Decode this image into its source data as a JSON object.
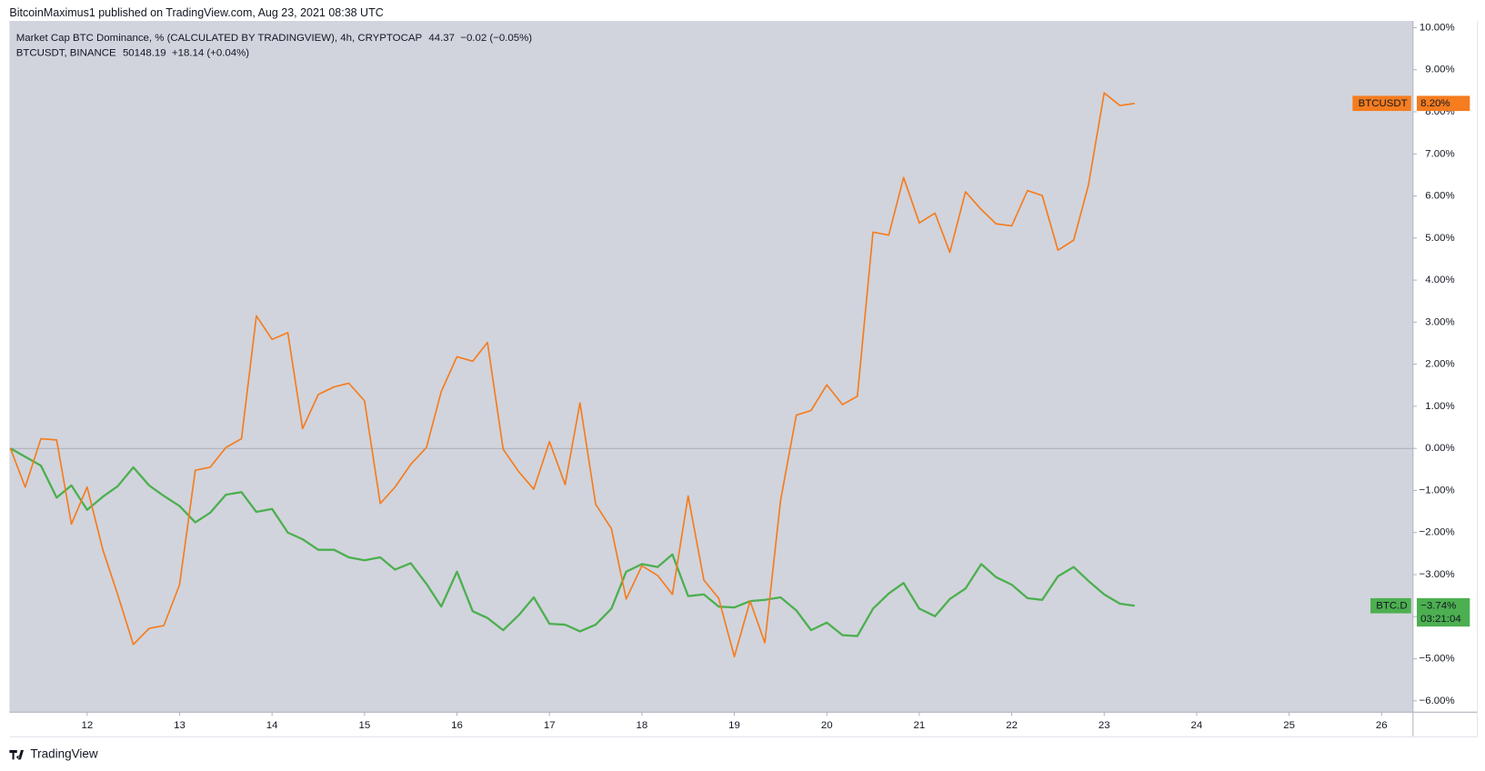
{
  "header": "BitcoinMaximus1 published on TradingView.com, Aug 23, 2021 08:38 UTC",
  "footer": "TradingView",
  "chart_data": {
    "type": "line",
    "x": [
      11.17,
      11.33,
      11.5,
      11.67,
      11.83,
      12,
      12.17,
      12.33,
      12.5,
      12.67,
      12.83,
      13,
      13.17,
      13.33,
      13.5,
      13.67,
      13.83,
      14,
      14.17,
      14.33,
      14.5,
      14.67,
      14.83,
      15,
      15.17,
      15.33,
      15.5,
      15.67,
      15.83,
      16,
      16.17,
      16.33,
      16.5,
      16.67,
      16.83,
      17,
      17.17,
      17.33,
      17.5,
      17.67,
      17.83,
      18,
      18.17,
      18.33,
      18.5,
      18.67,
      18.83,
      19,
      19.17,
      19.33,
      19.5,
      19.67,
      19.83,
      20,
      20.17,
      20.33,
      20.5,
      20.67,
      20.83,
      21,
      21.17,
      21.33,
      21.5,
      21.67,
      21.83,
      22,
      22.17,
      22.33,
      22.5,
      22.67,
      22.83,
      23,
      23.17,
      23.33
    ],
    "xlim": [
      11.16,
      26.34
    ],
    "xticks": [
      12,
      13,
      14,
      15,
      16,
      17,
      18,
      19,
      20,
      21,
      22,
      23,
      24,
      25,
      26
    ],
    "ylim": [
      -6.27,
      10.16
    ],
    "yticks": [
      {
        "value": -6,
        "label": "−6.00%"
      },
      {
        "value": -5,
        "label": "−5.00%"
      },
      {
        "value": -4,
        "label": "−4.00%"
      },
      {
        "value": -3,
        "label": "−3.00%"
      },
      {
        "value": -2,
        "label": "−2.00%"
      },
      {
        "value": -1,
        "label": "−1.00%"
      },
      {
        "value": 0,
        "label": "0.00%"
      },
      {
        "value": 1,
        "label": "1.00%"
      },
      {
        "value": 2,
        "label": "2.00%"
      },
      {
        "value": 3,
        "label": "3.00%"
      },
      {
        "value": 4,
        "label": "4.00%"
      },
      {
        "value": 5,
        "label": "5.00%"
      },
      {
        "value": 6,
        "label": "6.00%"
      },
      {
        "value": 7,
        "label": "7.00%"
      },
      {
        "value": 8,
        "label": "8.00%"
      },
      {
        "value": 9,
        "label": "9.00%"
      },
      {
        "value": 10,
        "label": "10.00%"
      }
    ],
    "series": [
      {
        "name": "BTC.D",
        "color": "#4caf50",
        "legend": {
          "title": "Market Cap BTC Dominance, % (CALCULATED BY TRADINGVIEW), 4h, CRYPTOCAP",
          "price": "44.37",
          "change": "−0.02 (−0.05%)"
        },
        "last_label": "−3.74%",
        "countdown": "03:21:04",
        "values": [
          0,
          -0.2,
          -0.41,
          -1.17,
          -0.88,
          -1.46,
          -1.15,
          -0.9,
          -0.45,
          -0.88,
          -1.13,
          -1.37,
          -1.76,
          -1.53,
          -1.1,
          -1.04,
          -1.51,
          -1.44,
          -2.0,
          -2.16,
          -2.41,
          -2.41,
          -2.59,
          -2.66,
          -2.59,
          -2.88,
          -2.73,
          -3.22,
          -3.76,
          -2.93,
          -3.87,
          -4.03,
          -4.32,
          -3.96,
          -3.54,
          -4.17,
          -4.19,
          -4.35,
          -4.19,
          -3.81,
          -2.93,
          -2.75,
          -2.82,
          -2.52,
          -3.51,
          -3.47,
          -3.76,
          -3.78,
          -3.63,
          -3.6,
          -3.54,
          -3.85,
          -4.32,
          -4.14,
          -4.44,
          -4.46,
          -3.81,
          -3.45,
          -3.2,
          -3.81,
          -3.99,
          -3.58,
          -3.33,
          -2.75,
          -3.06,
          -3.24,
          -3.56,
          -3.6,
          -3.04,
          -2.82,
          -3.15,
          -3.47,
          -3.69,
          -3.74
        ]
      },
      {
        "name": "BTCUSDT",
        "color": "#f57c1f",
        "legend": {
          "title": "BTCUSDT, BINANCE",
          "price": "50148.19",
          "change": "+18.14 (+0.04%)"
        },
        "last_label": "8.20%",
        "values": [
          0,
          -0.92,
          0.23,
          0.2,
          -1.8,
          -0.92,
          -2.41,
          -3.47,
          -4.66,
          -4.28,
          -4.21,
          -3.24,
          -0.52,
          -0.45,
          0.02,
          0.23,
          3.15,
          2.59,
          2.75,
          0.47,
          1.28,
          1.46,
          1.55,
          1.13,
          -1.31,
          -0.92,
          -0.38,
          0.02,
          1.35,
          2.18,
          2.07,
          2.52,
          -0.02,
          -0.56,
          -0.97,
          0.16,
          -0.86,
          1.08,
          -1.33,
          -1.91,
          -3.58,
          -2.79,
          -3.02,
          -3.47,
          -1.13,
          -3.13,
          -3.56,
          -4.95,
          -3.63,
          -4.62,
          -1.24,
          0.79,
          0.9,
          1.51,
          1.04,
          1.24,
          5.14,
          5.07,
          6.44,
          5.36,
          5.59,
          4.66,
          6.1,
          5.68,
          5.34,
          5.29,
          6.13,
          6.01,
          4.71,
          4.95,
          6.26,
          8.45,
          8.15,
          8.2
        ]
      }
    ]
  }
}
